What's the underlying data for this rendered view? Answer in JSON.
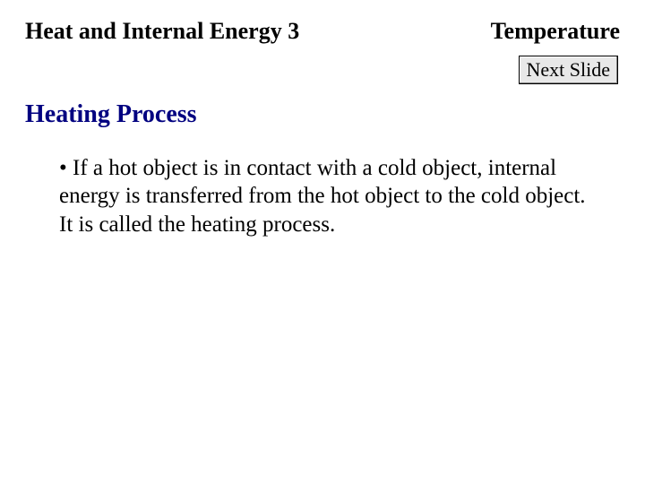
{
  "header": {
    "left": "Heat and Internal Energy  3",
    "right": "Temperature"
  },
  "nextSlide": {
    "label": "Next Slide"
  },
  "section": {
    "title": "Heating Process",
    "title_color": "#000080"
  },
  "bullet": {
    "text": "• If a hot object is in contact with a cold object, internal energy is transferred from the hot object to the cold object. It is called the heating process."
  },
  "style": {
    "background": "#ffffff",
    "text_color": "#000000",
    "font_family": "Times New Roman",
    "header_fontsize": 26,
    "section_fontsize": 28,
    "body_fontsize": 25,
    "button_bg": "#e8e8e8",
    "button_border": "#000000"
  }
}
